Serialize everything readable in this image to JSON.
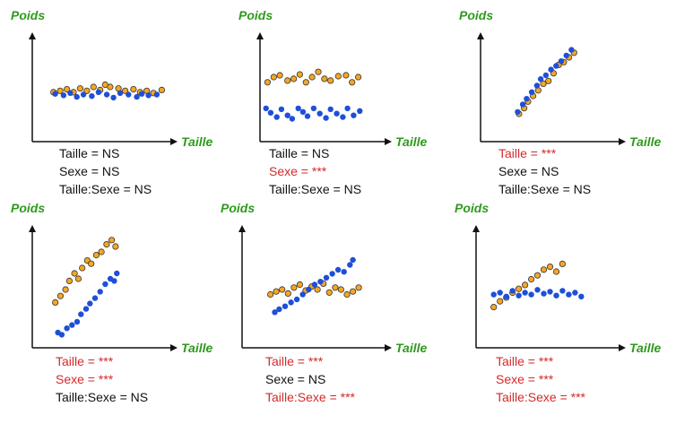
{
  "labels": {
    "y": "Poids",
    "x": "Taille"
  },
  "colors": {
    "orange": "#f5a623",
    "blue": "#1f4fd8",
    "axis": "#111111",
    "label": "#2e9a1c",
    "sig": "#d42a2a",
    "ns": "#111111"
  },
  "chart_data": [
    {
      "type": "scatter",
      "series": [
        {
          "group": "orange",
          "points": [
            [
              0.2,
              0.53
            ],
            [
              0.6,
              0.55
            ],
            [
              1.0,
              0.57
            ],
            [
              1.4,
              0.53
            ],
            [
              1.8,
              0.58
            ],
            [
              2.2,
              0.55
            ],
            [
              2.6,
              0.6
            ],
            [
              3.0,
              0.56
            ],
            [
              3.3,
              0.63
            ],
            [
              3.6,
              0.6
            ],
            [
              4.1,
              0.58
            ],
            [
              4.5,
              0.55
            ],
            [
              5.0,
              0.57
            ],
            [
              5.4,
              0.53
            ],
            [
              5.8,
              0.55
            ],
            [
              6.2,
              0.52
            ],
            [
              6.7,
              0.56
            ]
          ]
        },
        {
          "group": "blue",
          "points": [
            [
              0.3,
              0.51
            ],
            [
              0.8,
              0.49
            ],
            [
              1.2,
              0.52
            ],
            [
              1.6,
              0.47
            ],
            [
              2.0,
              0.5
            ],
            [
              2.5,
              0.48
            ],
            [
              2.9,
              0.53
            ],
            [
              3.4,
              0.5
            ],
            [
              3.8,
              0.46
            ],
            [
              4.2,
              0.52
            ],
            [
              4.7,
              0.5
            ],
            [
              5.2,
              0.47
            ],
            [
              5.5,
              0.51
            ],
            [
              5.9,
              0.49
            ],
            [
              6.4,
              0.5
            ]
          ]
        }
      ],
      "captions": [
        {
          "text": "Taille = NS",
          "sig": false
        },
        {
          "text": "Sexe = NS",
          "sig": false
        },
        {
          "text": "Taille:Sexe = NS",
          "sig": false
        }
      ]
    },
    {
      "type": "scatter",
      "series": [
        {
          "group": "orange",
          "points": [
            [
              0.2,
              0.6
            ],
            [
              0.6,
              0.66
            ],
            [
              1.0,
              0.68
            ],
            [
              1.5,
              0.62
            ],
            [
              1.9,
              0.64
            ],
            [
              2.3,
              0.69
            ],
            [
              2.7,
              0.6
            ],
            [
              3.1,
              0.66
            ],
            [
              3.5,
              0.72
            ],
            [
              3.9,
              0.64
            ],
            [
              4.3,
              0.62
            ],
            [
              4.8,
              0.67
            ],
            [
              5.3,
              0.68
            ],
            [
              5.7,
              0.6
            ],
            [
              6.1,
              0.66
            ]
          ]
        },
        {
          "group": "blue",
          "points": [
            [
              0.1,
              0.3
            ],
            [
              0.4,
              0.25
            ],
            [
              0.8,
              0.2
            ],
            [
              1.1,
              0.29
            ],
            [
              1.5,
              0.22
            ],
            [
              1.8,
              0.18
            ],
            [
              2.2,
              0.3
            ],
            [
              2.5,
              0.26
            ],
            [
              2.8,
              0.21
            ],
            [
              3.2,
              0.3
            ],
            [
              3.6,
              0.24
            ],
            [
              4.0,
              0.19
            ],
            [
              4.3,
              0.29
            ],
            [
              4.7,
              0.24
            ],
            [
              5.1,
              0.2
            ],
            [
              5.4,
              0.3
            ],
            [
              5.8,
              0.22
            ],
            [
              6.2,
              0.27
            ]
          ]
        }
      ],
      "captions": [
        {
          "text": "Taille = NS",
          "sig": false
        },
        {
          "text": "Sexe = ***",
          "sig": true
        },
        {
          "text": "Taille:Sexe = NS",
          "sig": false
        }
      ]
    },
    {
      "type": "scatter",
      "series": [
        {
          "group": "orange",
          "points": [
            [
              0.9,
              0.2
            ],
            [
              1.3,
              0.26
            ],
            [
              1.6,
              0.33
            ],
            [
              2.0,
              0.39
            ],
            [
              2.4,
              0.45
            ],
            [
              2.8,
              0.52
            ],
            [
              3.2,
              0.55
            ],
            [
              3.6,
              0.63
            ],
            [
              4.0,
              0.72
            ],
            [
              4.4,
              0.75
            ],
            [
              4.8,
              0.8
            ],
            [
              5.2,
              0.85
            ]
          ]
        },
        {
          "group": "blue",
          "points": [
            [
              0.8,
              0.22
            ],
            [
              1.2,
              0.3
            ],
            [
              1.5,
              0.36
            ],
            [
              1.9,
              0.43
            ],
            [
              2.3,
              0.5
            ],
            [
              2.6,
              0.57
            ],
            [
              3.0,
              0.61
            ],
            [
              3.4,
              0.67
            ],
            [
              3.8,
              0.71
            ],
            [
              4.2,
              0.76
            ],
            [
              4.6,
              0.82
            ],
            [
              5.0,
              0.88
            ]
          ]
        }
      ],
      "captions": [
        {
          "text": "Taille = ***",
          "sig": true
        },
        {
          "text": "Sexe = NS",
          "sig": false
        },
        {
          "text": "Taille:Sexe = NS",
          "sig": false
        }
      ]
    },
    {
      "type": "scatter",
      "series": [
        {
          "group": "orange",
          "points": [
            [
              0.4,
              0.38
            ],
            [
              0.8,
              0.44
            ],
            [
              1.2,
              0.5
            ],
            [
              1.5,
              0.58
            ],
            [
              1.9,
              0.65
            ],
            [
              2.2,
              0.6
            ],
            [
              2.5,
              0.7
            ],
            [
              2.9,
              0.77
            ],
            [
              3.2,
              0.74
            ],
            [
              3.6,
              0.82
            ],
            [
              4.0,
              0.85
            ],
            [
              4.4,
              0.92
            ],
            [
              4.8,
              0.96
            ],
            [
              5.1,
              0.9
            ]
          ]
        },
        {
          "group": "blue",
          "points": [
            [
              0.6,
              0.1
            ],
            [
              0.9,
              0.08
            ],
            [
              1.3,
              0.14
            ],
            [
              1.7,
              0.17
            ],
            [
              2.1,
              0.2
            ],
            [
              2.4,
              0.27
            ],
            [
              2.8,
              0.32
            ],
            [
              3.1,
              0.37
            ],
            [
              3.5,
              0.42
            ],
            [
              3.9,
              0.48
            ],
            [
              4.3,
              0.55
            ],
            [
              4.7,
              0.6
            ],
            [
              5.0,
              0.58
            ],
            [
              5.2,
              0.65
            ]
          ]
        }
      ],
      "captions": [
        {
          "text": "Taille = ***",
          "sig": true
        },
        {
          "text": "Sexe = ***",
          "sig": true
        },
        {
          "text": "Taille:Sexe = NS",
          "sig": false
        }
      ]
    },
    {
      "type": "scatter",
      "series": [
        {
          "group": "orange",
          "points": [
            [
              0.4,
              0.45
            ],
            [
              0.8,
              0.48
            ],
            [
              1.2,
              0.5
            ],
            [
              1.6,
              0.46
            ],
            [
              2.0,
              0.52
            ],
            [
              2.4,
              0.55
            ],
            [
              2.8,
              0.49
            ],
            [
              3.2,
              0.53
            ],
            [
              3.6,
              0.5
            ],
            [
              4.0,
              0.56
            ],
            [
              4.4,
              0.47
            ],
            [
              4.8,
              0.52
            ],
            [
              5.2,
              0.5
            ],
            [
              5.6,
              0.45
            ],
            [
              6.0,
              0.48
            ],
            [
              6.4,
              0.52
            ]
          ]
        },
        {
          "group": "blue",
          "points": [
            [
              0.7,
              0.27
            ],
            [
              1.0,
              0.3
            ],
            [
              1.4,
              0.33
            ],
            [
              1.8,
              0.37
            ],
            [
              2.2,
              0.4
            ],
            [
              2.6,
              0.45
            ],
            [
              3.0,
              0.5
            ],
            [
              3.4,
              0.55
            ],
            [
              3.8,
              0.58
            ],
            [
              4.2,
              0.62
            ],
            [
              4.6,
              0.66
            ],
            [
              5.0,
              0.7
            ],
            [
              5.4,
              0.68
            ],
            [
              5.8,
              0.75
            ],
            [
              6.0,
              0.8
            ]
          ]
        }
      ],
      "captions": [
        {
          "text": "Taille = ***",
          "sig": true
        },
        {
          "text": "Sexe = NS",
          "sig": false
        },
        {
          "text": "Taille:Sexe = ***",
          "sig": true
        }
      ]
    },
    {
      "type": "scatter",
      "series": [
        {
          "group": "orange",
          "points": [
            [
              0.1,
              0.35
            ],
            [
              0.5,
              0.41
            ],
            [
              0.9,
              0.45
            ],
            [
              1.3,
              0.5
            ],
            [
              1.7,
              0.54
            ],
            [
              2.1,
              0.58
            ],
            [
              2.5,
              0.64
            ],
            [
              2.9,
              0.68
            ],
            [
              3.3,
              0.74
            ],
            [
              3.7,
              0.77
            ],
            [
              4.1,
              0.72
            ],
            [
              4.5,
              0.8
            ]
          ]
        },
        {
          "group": "blue",
          "points": [
            [
              0.1,
              0.48
            ],
            [
              0.5,
              0.5
            ],
            [
              0.9,
              0.46
            ],
            [
              1.3,
              0.52
            ],
            [
              1.7,
              0.47
            ],
            [
              2.1,
              0.5
            ],
            [
              2.5,
              0.48
            ],
            [
              2.9,
              0.53
            ],
            [
              3.3,
              0.49
            ],
            [
              3.7,
              0.51
            ],
            [
              4.1,
              0.47
            ],
            [
              4.5,
              0.52
            ],
            [
              4.9,
              0.48
            ],
            [
              5.3,
              0.5
            ],
            [
              5.7,
              0.46
            ]
          ]
        }
      ],
      "captions": [
        {
          "text": "Taille = ***",
          "sig": true
        },
        {
          "text": "Sexe = ***",
          "sig": true
        },
        {
          "text": "Taille:Sexe = ***",
          "sig": true
        }
      ]
    }
  ]
}
